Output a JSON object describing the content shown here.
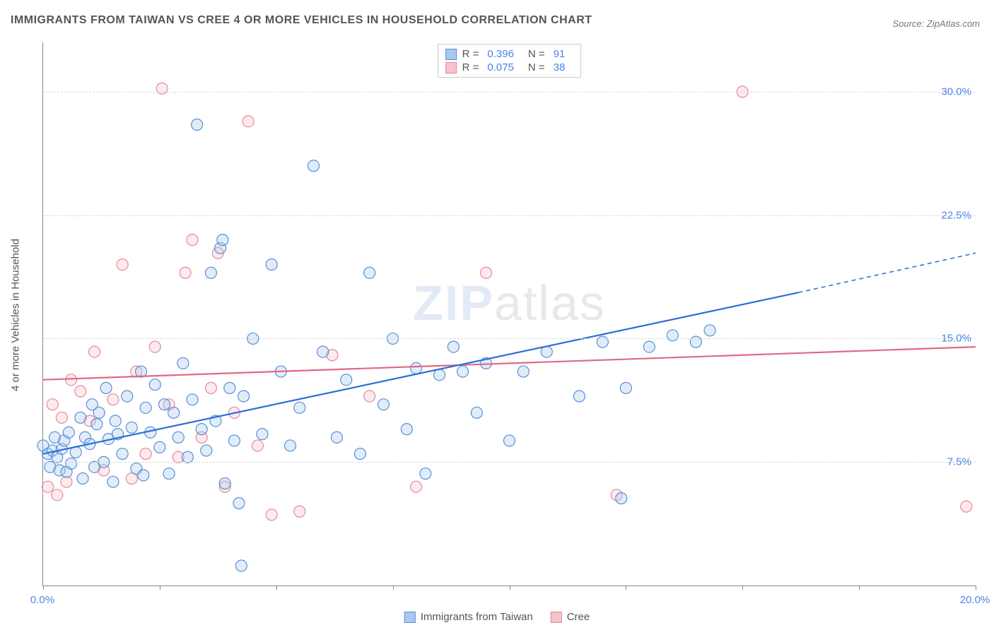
{
  "title": "IMMIGRANTS FROM TAIWAN VS CREE 4 OR MORE VEHICLES IN HOUSEHOLD CORRELATION CHART",
  "source": "Source: ZipAtlas.com",
  "y_axis_title": "4 or more Vehicles in Household",
  "watermark_a": "ZIP",
  "watermark_b": "atlas",
  "chart": {
    "type": "scatter",
    "background_color": "#ffffff",
    "grid_color": "#d8d8d8",
    "axis_color": "#888888",
    "label_color": "#4a86e8",
    "title_color": "#555555",
    "title_fontsize": 16,
    "label_fontsize": 15,
    "xlim": [
      0.0,
      20.0
    ],
    "ylim": [
      0.0,
      33.0
    ],
    "y_gridlines": [
      7.5,
      15.0,
      22.5,
      30.0
    ],
    "y_tick_labels": [
      "7.5%",
      "15.0%",
      "22.5%",
      "30.0%"
    ],
    "x_ticks": [
      0,
      2.5,
      5,
      7.5,
      10,
      12.5,
      15,
      17.5,
      20
    ],
    "x_tick_labels_shown": {
      "0": "0.0%",
      "20": "20.0%"
    },
    "marker_radius": 8,
    "marker_stroke_width": 1.2,
    "marker_fill_opacity": 0.35,
    "line_width": 2.2
  },
  "series": [
    {
      "name": "Immigrants from Taiwan",
      "color_fill": "#a9c8ed",
      "color_stroke": "#5a8fd6",
      "line_color": "#2a6fd6",
      "R": "0.396",
      "N": "91",
      "trend": {
        "x1": 0.0,
        "y1": 8.0,
        "x2": 16.2,
        "y2": 17.8,
        "x2_ext": 20.0,
        "y2_ext": 20.2
      },
      "points": [
        [
          0.0,
          8.5
        ],
        [
          0.1,
          8.0
        ],
        [
          0.15,
          7.2
        ],
        [
          0.2,
          8.2
        ],
        [
          0.25,
          9.0
        ],
        [
          0.3,
          7.8
        ],
        [
          0.35,
          7.0
        ],
        [
          0.4,
          8.3
        ],
        [
          0.45,
          8.8
        ],
        [
          0.5,
          6.9
        ],
        [
          0.55,
          9.3
        ],
        [
          0.6,
          7.4
        ],
        [
          0.7,
          8.1
        ],
        [
          0.8,
          10.2
        ],
        [
          0.85,
          6.5
        ],
        [
          0.9,
          9.0
        ],
        [
          1.0,
          8.6
        ],
        [
          1.05,
          11.0
        ],
        [
          1.1,
          7.2
        ],
        [
          1.15,
          9.8
        ],
        [
          1.2,
          10.5
        ],
        [
          1.3,
          7.5
        ],
        [
          1.35,
          12.0
        ],
        [
          1.4,
          8.9
        ],
        [
          1.5,
          6.3
        ],
        [
          1.55,
          10.0
        ],
        [
          1.6,
          9.2
        ],
        [
          1.7,
          8.0
        ],
        [
          1.8,
          11.5
        ],
        [
          1.9,
          9.6
        ],
        [
          2.0,
          7.1
        ],
        [
          2.1,
          13.0
        ],
        [
          2.15,
          6.7
        ],
        [
          2.2,
          10.8
        ],
        [
          2.3,
          9.3
        ],
        [
          2.4,
          12.2
        ],
        [
          2.5,
          8.4
        ],
        [
          2.6,
          11.0
        ],
        [
          2.7,
          6.8
        ],
        [
          2.8,
          10.5
        ],
        [
          2.9,
          9.0
        ],
        [
          3.0,
          13.5
        ],
        [
          3.1,
          7.8
        ],
        [
          3.2,
          11.3
        ],
        [
          3.3,
          28.0
        ],
        [
          3.4,
          9.5
        ],
        [
          3.5,
          8.2
        ],
        [
          3.6,
          19.0
        ],
        [
          3.7,
          10.0
        ],
        [
          3.8,
          20.5
        ],
        [
          3.85,
          21.0
        ],
        [
          3.9,
          6.2
        ],
        [
          4.0,
          12.0
        ],
        [
          4.1,
          8.8
        ],
        [
          4.2,
          5.0
        ],
        [
          4.25,
          1.2
        ],
        [
          4.3,
          11.5
        ],
        [
          4.5,
          15.0
        ],
        [
          4.7,
          9.2
        ],
        [
          4.9,
          19.5
        ],
        [
          5.1,
          13.0
        ],
        [
          5.3,
          8.5
        ],
        [
          5.5,
          10.8
        ],
        [
          5.8,
          25.5
        ],
        [
          6.0,
          14.2
        ],
        [
          6.3,
          9.0
        ],
        [
          6.5,
          12.5
        ],
        [
          6.8,
          8.0
        ],
        [
          7.0,
          19.0
        ],
        [
          7.3,
          11.0
        ],
        [
          7.5,
          15.0
        ],
        [
          7.8,
          9.5
        ],
        [
          8.0,
          13.2
        ],
        [
          8.2,
          6.8
        ],
        [
          8.5,
          12.8
        ],
        [
          8.8,
          14.5
        ],
        [
          9.0,
          13.0
        ],
        [
          9.3,
          10.5
        ],
        [
          9.5,
          13.5
        ],
        [
          10.0,
          8.8
        ],
        [
          10.3,
          13.0
        ],
        [
          10.8,
          14.2
        ],
        [
          11.5,
          11.5
        ],
        [
          12.0,
          14.8
        ],
        [
          12.4,
          5.3
        ],
        [
          12.5,
          12.0
        ],
        [
          13.0,
          14.5
        ],
        [
          13.5,
          15.2
        ],
        [
          14.0,
          14.8
        ],
        [
          14.3,
          15.5
        ]
      ]
    },
    {
      "name": "Cree",
      "color_fill": "#f5c3cc",
      "color_stroke": "#e48a9c",
      "line_color": "#e06a85",
      "R": "0.075",
      "N": "38",
      "trend": {
        "x1": 0.0,
        "y1": 12.5,
        "x2": 20.0,
        "y2": 14.5
      },
      "points": [
        [
          0.1,
          6.0
        ],
        [
          0.2,
          11.0
        ],
        [
          0.3,
          5.5
        ],
        [
          0.4,
          10.2
        ],
        [
          0.5,
          6.3
        ],
        [
          0.6,
          12.5
        ],
        [
          0.8,
          11.8
        ],
        [
          1.0,
          10.0
        ],
        [
          1.1,
          14.2
        ],
        [
          1.3,
          7.0
        ],
        [
          1.5,
          11.3
        ],
        [
          1.7,
          19.5
        ],
        [
          1.9,
          6.5
        ],
        [
          2.0,
          13.0
        ],
        [
          2.2,
          8.0
        ],
        [
          2.4,
          14.5
        ],
        [
          2.55,
          30.2
        ],
        [
          2.7,
          11.0
        ],
        [
          2.9,
          7.8
        ],
        [
          3.05,
          19.0
        ],
        [
          3.2,
          21.0
        ],
        [
          3.4,
          9.0
        ],
        [
          3.6,
          12.0
        ],
        [
          3.75,
          20.2
        ],
        [
          3.9,
          6.0
        ],
        [
          4.1,
          10.5
        ],
        [
          4.4,
          28.2
        ],
        [
          4.6,
          8.5
        ],
        [
          4.9,
          4.3
        ],
        [
          5.5,
          4.5
        ],
        [
          6.2,
          14.0
        ],
        [
          7.0,
          11.5
        ],
        [
          8.0,
          6.0
        ],
        [
          9.5,
          19.0
        ],
        [
          12.3,
          5.5
        ],
        [
          15.0,
          30.0
        ],
        [
          19.8,
          4.8
        ]
      ]
    }
  ],
  "legend": {
    "R_label": "R =",
    "N_label": "N ="
  }
}
